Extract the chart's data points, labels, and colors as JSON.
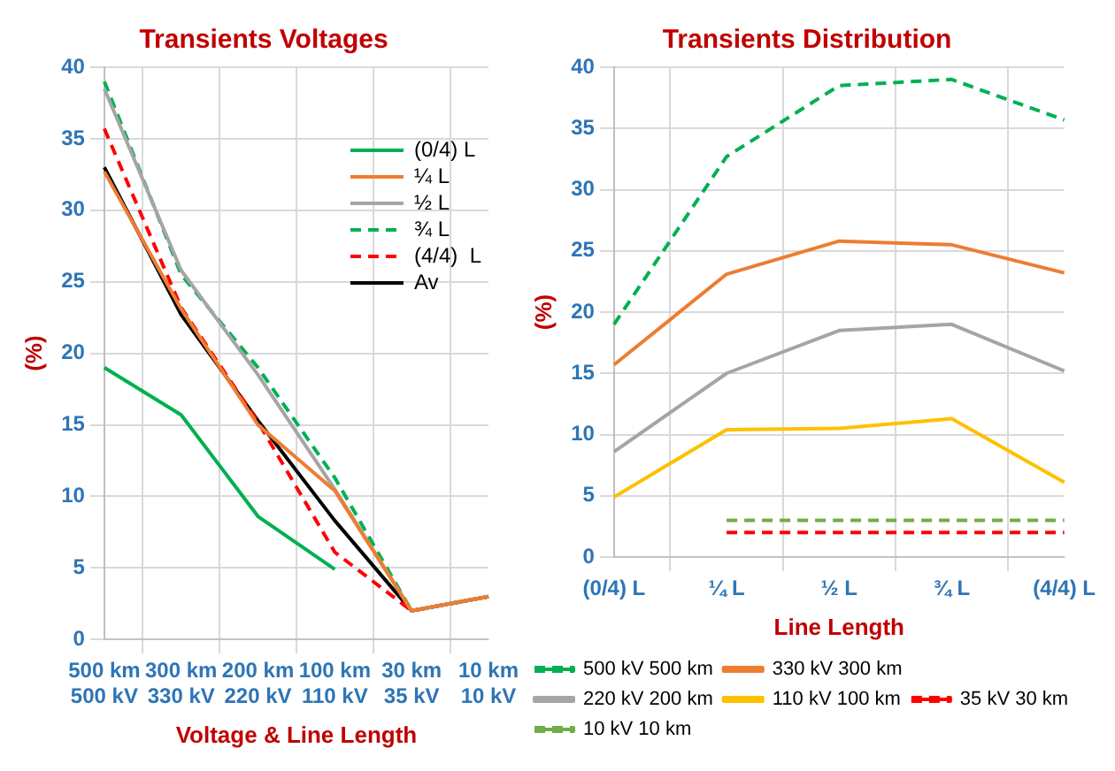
{
  "chart_data": [
    {
      "type": "line",
      "title": "Transients Voltages",
      "xlabel": "Voltage & Line Length",
      "ylabel": "(%)",
      "categories": [
        "500 km\n500 kV",
        "300 km\n330 kV",
        "200 km\n220 kV",
        "100 km\n110 kV",
        "30 km\n35 kV",
        "10 km\n10 kV"
      ],
      "series": [
        {
          "name": "(0/4) L",
          "color": "#00b050",
          "line_style": "solid",
          "values": [
            19,
            15.7,
            8.6,
            4.9,
            null,
            null
          ]
        },
        {
          "name": "¼ L",
          "color": "#ed7d31",
          "line_style": "solid",
          "values": [
            32.7,
            23.1,
            15,
            10.4,
            2,
            3
          ]
        },
        {
          "name": "½ L",
          "color": "#a5a5a5",
          "line_style": "solid",
          "values": [
            38.5,
            25.8,
            18.5,
            10.5,
            2,
            3
          ]
        },
        {
          "name": "¾ L",
          "color": "#00b050",
          "line_style": "dashed",
          "values": [
            39,
            25.5,
            19,
            11.3,
            2,
            3
          ]
        },
        {
          "name": "(4/4)  L",
          "color": "#ff0000",
          "line_style": "dashed",
          "values": [
            35.7,
            23.2,
            15.2,
            6.1,
            2,
            3
          ]
        },
        {
          "name": "Av",
          "color": "#000000",
          "line_style": "solid",
          "values": [
            33,
            22.7,
            15.3,
            8.3,
            2,
            3
          ]
        }
      ],
      "ylim": [
        0,
        40
      ],
      "yticks": [
        0,
        5,
        10,
        15,
        20,
        25,
        30,
        35,
        40
      ],
      "grid": true,
      "legend": "top right",
      "marker": "none"
    },
    {
      "type": "line",
      "title": "Transients Distribution",
      "xlabel": "Line Length",
      "ylabel": "(%)",
      "categories": [
        "(0/4) L",
        "¼ L",
        "½ L",
        "¾ L",
        "(4/4) L"
      ],
      "series": [
        {
          "name": "500 kV 500 km",
          "color": "#00b050",
          "line_style": "dashed",
          "values": [
            19,
            32.7,
            38.5,
            39,
            35.7
          ]
        },
        {
          "name": "330 kV 300 km",
          "color": "#ed7d31",
          "line_style": "solid",
          "values": [
            15.7,
            23.1,
            25.8,
            25.5,
            23.2
          ]
        },
        {
          "name": "220 kV 200 km",
          "color": "#a5a5a5",
          "line_style": "solid",
          "values": [
            8.6,
            15,
            18.5,
            19,
            15.2
          ]
        },
        {
          "name": "110 kV 100 km",
          "color": "#ffc000",
          "line_style": "solid",
          "values": [
            4.9,
            10.4,
            10.5,
            11.3,
            6.1
          ]
        },
        {
          "name": "35 kV 30 km",
          "color": "#ff0000",
          "line_style": "dashed",
          "values": [
            null,
            2,
            2,
            2,
            2
          ]
        },
        {
          "name": "10 kV 10 km",
          "color": "#70ad47",
          "line_style": "dashed",
          "values": [
            null,
            3,
            3,
            3,
            3
          ]
        }
      ],
      "ylim": [
        0,
        40
      ],
      "yticks": [
        0,
        5,
        10,
        15,
        20,
        25,
        30,
        35,
        40
      ],
      "grid": true,
      "legend": "bottom",
      "marker": "none"
    }
  ]
}
